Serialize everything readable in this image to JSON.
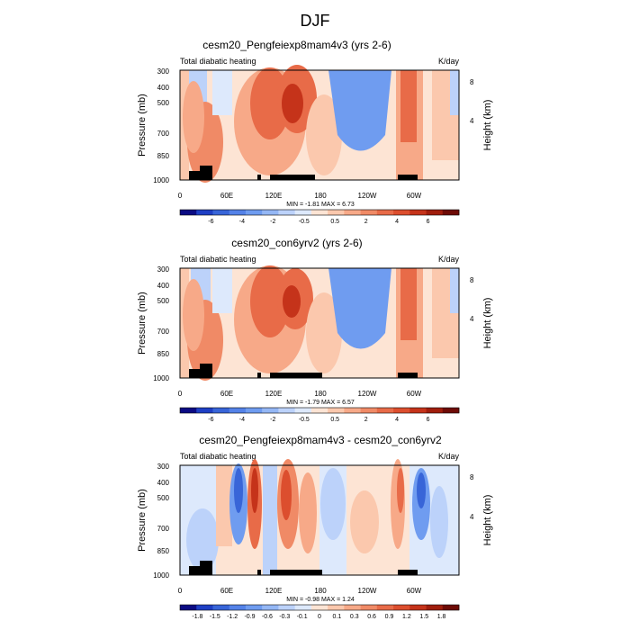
{
  "figure_title": "DJF",
  "chart_data": [
    {
      "type": "heatmap",
      "title": "cesm20_Pengfeiexp8mam4v3 (yrs 2-6)",
      "left_label": "Total diabatic heating",
      "right_label": "K/day",
      "ylabel": "Pressure (mb)",
      "ylabel_right": "Height (km)",
      "x_ticks": [
        "0",
        "60E",
        "120E",
        "180",
        "120W",
        "60W"
      ],
      "y_ticks": [
        "300",
        "400",
        "500",
        "700",
        "850",
        "1000"
      ],
      "height_ticks": [
        "8",
        "4"
      ],
      "stats": "MIN =  -1.81  MAX =   6.73",
      "colorbar": [
        "-6",
        "-4",
        "-2",
        "-0.5",
        "0.5",
        "2",
        "4",
        "6"
      ],
      "colors": [
        "#0b0b83",
        "#1e3fc4",
        "#3865d8",
        "#5482e8",
        "#6f9cf0",
        "#94b7f5",
        "#bcd2fa",
        "#dde9fc",
        "#fde4d4",
        "#fbc8ad",
        "#f7a988",
        "#f08a66",
        "#e86b48",
        "#dc4e2e",
        "#c5331a",
        "#a01d0c",
        "#6e0b06"
      ],
      "xlim": [
        0,
        360
      ],
      "ylim": [
        300,
        1000
      ]
    },
    {
      "type": "heatmap",
      "title": "cesm20_con6yrv2 (yrs 2-6)",
      "left_label": "Total diabatic heating",
      "right_label": "K/day",
      "ylabel": "Pressure (mb)",
      "ylabel_right": "Height (km)",
      "x_ticks": [
        "0",
        "60E",
        "120E",
        "180",
        "120W",
        "60W"
      ],
      "y_ticks": [
        "300",
        "400",
        "500",
        "700",
        "850",
        "1000"
      ],
      "height_ticks": [
        "8",
        "4"
      ],
      "stats": "MIN =  -1.79  MAX =   6.57",
      "colorbar": [
        "-6",
        "-4",
        "-2",
        "-0.5",
        "0.5",
        "2",
        "4",
        "6"
      ],
      "colors": [
        "#0b0b83",
        "#1e3fc4",
        "#3865d8",
        "#5482e8",
        "#6f9cf0",
        "#94b7f5",
        "#bcd2fa",
        "#dde9fc",
        "#fde4d4",
        "#fbc8ad",
        "#f7a988",
        "#f08a66",
        "#e86b48",
        "#dc4e2e",
        "#c5331a",
        "#a01d0c",
        "#6e0b06"
      ],
      "xlim": [
        0,
        360
      ],
      "ylim": [
        300,
        1000
      ]
    },
    {
      "type": "heatmap",
      "title": "cesm20_Pengfeiexp8mam4v3 - cesm20_con6yrv2",
      "left_label": "Total diabatic heating",
      "right_label": "K/day",
      "ylabel": "Pressure (mb)",
      "ylabel_right": "Height (km)",
      "x_ticks": [
        "0",
        "60E",
        "120E",
        "180",
        "120W",
        "60W"
      ],
      "y_ticks": [
        "300",
        "400",
        "500",
        "700",
        "850",
        "1000"
      ],
      "height_ticks": [
        "8",
        "4"
      ],
      "stats": "MIN =  -0.98  MAX =   1.24",
      "colorbar": [
        "-1.8",
        "-1.5",
        "-1.2",
        "-0.9",
        "-0.6",
        "-0.3",
        "-0.1",
        "0",
        "0.1",
        "0.3",
        "0.6",
        "0.9",
        "1.2",
        "1.5",
        "1.8"
      ],
      "colors": [
        "#0b0b83",
        "#1e3fc4",
        "#3865d8",
        "#5482e8",
        "#6f9cf0",
        "#94b7f5",
        "#bcd2fa",
        "#dde9fc",
        "#fde4d4",
        "#fbc8ad",
        "#f7a988",
        "#f08a66",
        "#e86b48",
        "#dc4e2e",
        "#c5331a",
        "#a01d0c",
        "#6e0b06"
      ],
      "xlim": [
        0,
        360
      ],
      "ylim": [
        300,
        1000
      ]
    }
  ]
}
